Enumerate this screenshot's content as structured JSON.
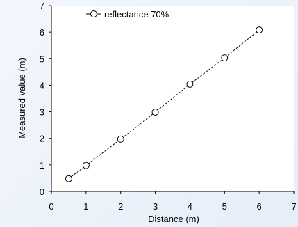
{
  "chart_data": {
    "type": "line",
    "xlabel": "Distance (m)",
    "ylabel": "Measured value (m)",
    "xlim": [
      0,
      7
    ],
    "ylim": [
      0,
      7
    ],
    "xticks": [
      0,
      1,
      2,
      3,
      4,
      5,
      6,
      7
    ],
    "yticks": [
      0,
      1,
      2,
      3,
      4,
      5,
      6,
      7
    ],
    "grid": false,
    "legend_position": "top-left",
    "series": [
      {
        "name": "reflectance 70%",
        "line_style": "dashed",
        "marker": "open-circle",
        "color": "#000000",
        "x": [
          0.5,
          1,
          2,
          3,
          4,
          5,
          6
        ],
        "y": [
          0.48,
          0.98,
          1.97,
          2.99,
          4.04,
          5.03,
          6.08
        ]
      }
    ]
  }
}
